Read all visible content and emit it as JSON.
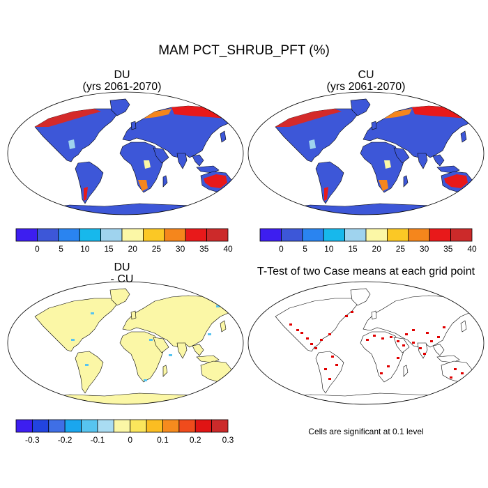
{
  "title": "MAM PCT_SHRUB_PFT (%)",
  "panels": [
    {
      "id": "du",
      "title_line1": "DU",
      "title_line2": "(yrs 2061-2070)",
      "base_color": "#3d57d8"
    },
    {
      "id": "cu",
      "title_line1": "CU",
      "title_line2": "(yrs 2061-2070)",
      "base_color": "#3d57d8"
    },
    {
      "id": "diff",
      "title_line1": "DU",
      "title_line2": "- CU",
      "base_color": "#fbf7a6"
    },
    {
      "id": "ttest",
      "title_line1": "T-Test of two Case means at each grid point",
      "title_line2": "",
      "base_color": "#ffffff"
    }
  ],
  "colorbar_main": {
    "colors": [
      "#3d1ef0",
      "#3d57d8",
      "#2a84f0",
      "#17b8ec",
      "#9fd3ee",
      "#fbf7a6",
      "#fbc825",
      "#f5861c",
      "#e8191a",
      "#cc2a2a"
    ],
    "labels": [
      "0",
      "5",
      "10",
      "15",
      "20",
      "25",
      "30",
      "35",
      "40"
    ]
  },
  "colorbar_diff": {
    "colors": [
      "#3d1ef0",
      "#2244e0",
      "#3f6fe6",
      "#1aa6ee",
      "#57c4f0",
      "#a9dcf2",
      "#fbf7a6",
      "#fbe65c",
      "#fbbd22",
      "#f68b1e",
      "#f04b1c",
      "#e01414",
      "#cc2a2a"
    ],
    "labels": [
      "-0.3",
      "-0.2",
      "-0.1",
      "0",
      "0.1",
      "0.2",
      "0.3"
    ]
  },
  "significance_note": "Cells are significant at 0.1 level"
}
